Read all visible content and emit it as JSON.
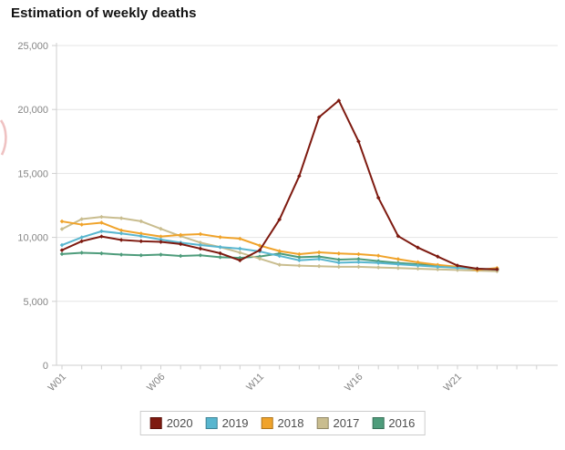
{
  "header": {
    "title": "Estimation of weekly deaths"
  },
  "colors": {
    "gridline": "#e4e4e4",
    "axis": "#cfcfcf",
    "tick_label": "#858585",
    "legend_text": "#4d4d4d",
    "legend_border": "#cccccc",
    "title": "#111111",
    "watermark": "#eaaeae",
    "series_2020": "#7e1a10",
    "series_2019": "#58b6cf",
    "series_2018": "#f0a32a",
    "series_2017": "#c9bd8f",
    "series_2016": "#4e9c7b"
  },
  "chart_data": {
    "type": "line",
    "title": "Estimation of weekly deaths",
    "xlabel": "",
    "ylabel": "",
    "grid": "horizontal",
    "legend_position": "bottom-center",
    "ylim": [
      0,
      25000
    ],
    "x": [
      "W01",
      "W02",
      "W03",
      "W04",
      "W05",
      "W06",
      "W07",
      "W08",
      "W09",
      "W10",
      "W11",
      "W12",
      "W13",
      "W14",
      "W15",
      "W16",
      "W17",
      "W18",
      "W19",
      "W20",
      "W21",
      "W22",
      "W23"
    ],
    "x_axis_labels_shown": [
      "W01",
      "W06",
      "W11",
      "W16",
      "W21"
    ],
    "y_ticks": [
      0,
      5000,
      10000,
      15000,
      20000,
      25000
    ],
    "y_tick_labels": [
      "0",
      "5,000",
      "10,000",
      "15,000",
      "20,000",
      "25,000"
    ],
    "series": [
      {
        "name": "2020",
        "color": "#7e1a10",
        "values": [
          9000,
          9700,
          10070,
          9800,
          9700,
          9650,
          9480,
          9120,
          8760,
          8200,
          9000,
          11400,
          14800,
          19400,
          20700,
          17500,
          13100,
          10100,
          9200,
          8500,
          7800,
          7550,
          7500
        ]
      },
      {
        "name": "2019",
        "color": "#58b6cf",
        "values": [
          9400,
          10000,
          10480,
          10310,
          10100,
          9830,
          9590,
          9400,
          9240,
          9120,
          8900,
          8550,
          8210,
          8310,
          8020,
          8070,
          8000,
          7900,
          7800,
          7700,
          7620,
          7550,
          7500
        ]
      },
      {
        "name": "2018",
        "color": "#f0a32a",
        "values": [
          11250,
          11000,
          11150,
          10550,
          10300,
          10070,
          10190,
          10260,
          10020,
          9900,
          9360,
          8930,
          8690,
          8830,
          8740,
          8690,
          8570,
          8300,
          8050,
          7850,
          7700,
          7450,
          7600
        ]
      },
      {
        "name": "2017",
        "color": "#c9bd8f",
        "values": [
          10650,
          11430,
          11600,
          11500,
          11260,
          10670,
          10100,
          9590,
          9240,
          8810,
          8340,
          7860,
          7790,
          7750,
          7700,
          7700,
          7650,
          7600,
          7550,
          7500,
          7450,
          7400,
          7350
        ]
      },
      {
        "name": "2016",
        "color": "#4e9c7b",
        "values": [
          8700,
          8800,
          8750,
          8650,
          8600,
          8650,
          8550,
          8600,
          8450,
          8400,
          8500,
          8740,
          8450,
          8500,
          8260,
          8310,
          8150,
          8000,
          7900,
          7800,
          7650,
          7550,
          7450
        ]
      }
    ]
  }
}
